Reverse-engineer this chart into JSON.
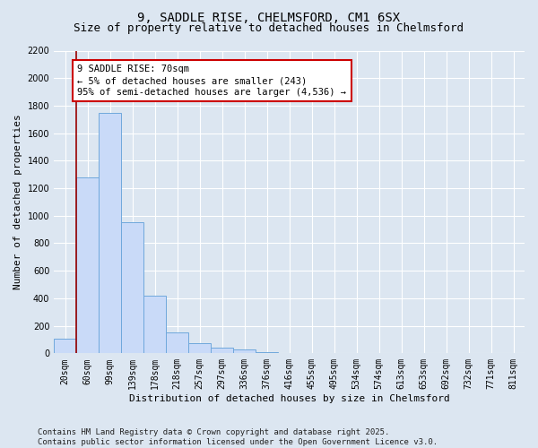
{
  "title_line1": "9, SADDLE RISE, CHELMSFORD, CM1 6SX",
  "title_line2": "Size of property relative to detached houses in Chelmsford",
  "xlabel": "Distribution of detached houses by size in Chelmsford",
  "ylabel": "Number of detached properties",
  "categories": [
    "20sqm",
    "60sqm",
    "99sqm",
    "139sqm",
    "178sqm",
    "218sqm",
    "257sqm",
    "297sqm",
    "336sqm",
    "376sqm",
    "416sqm",
    "455sqm",
    "495sqm",
    "534sqm",
    "574sqm",
    "613sqm",
    "653sqm",
    "692sqm",
    "732sqm",
    "771sqm",
    "811sqm"
  ],
  "values": [
    105,
    1280,
    1750,
    950,
    420,
    155,
    75,
    40,
    25,
    10,
    4,
    2,
    1,
    0,
    0,
    0,
    0,
    0,
    0,
    0,
    0
  ],
  "bar_color": "#c9daf8",
  "bar_edge_color": "#6fa8dc",
  "vline_color": "#990000",
  "annotation_text": "9 SADDLE RISE: 70sqm\n← 5% of detached houses are smaller (243)\n95% of semi-detached houses are larger (4,536) →",
  "annotation_box_color": "#ffffff",
  "annotation_box_edge": "#cc0000",
  "ylim": [
    0,
    2200
  ],
  "yticks": [
    0,
    200,
    400,
    600,
    800,
    1000,
    1200,
    1400,
    1600,
    1800,
    2000,
    2200
  ],
  "bg_color": "#dce6f1",
  "plot_bg_color": "#dce6f1",
  "grid_color": "#ffffff",
  "footer": "Contains HM Land Registry data © Crown copyright and database right 2025.\nContains public sector information licensed under the Open Government Licence v3.0.",
  "title_fontsize": 10,
  "subtitle_fontsize": 9,
  "axis_label_fontsize": 8,
  "tick_fontsize": 7,
  "annotation_fontsize": 7.5,
  "footer_fontsize": 6.5
}
